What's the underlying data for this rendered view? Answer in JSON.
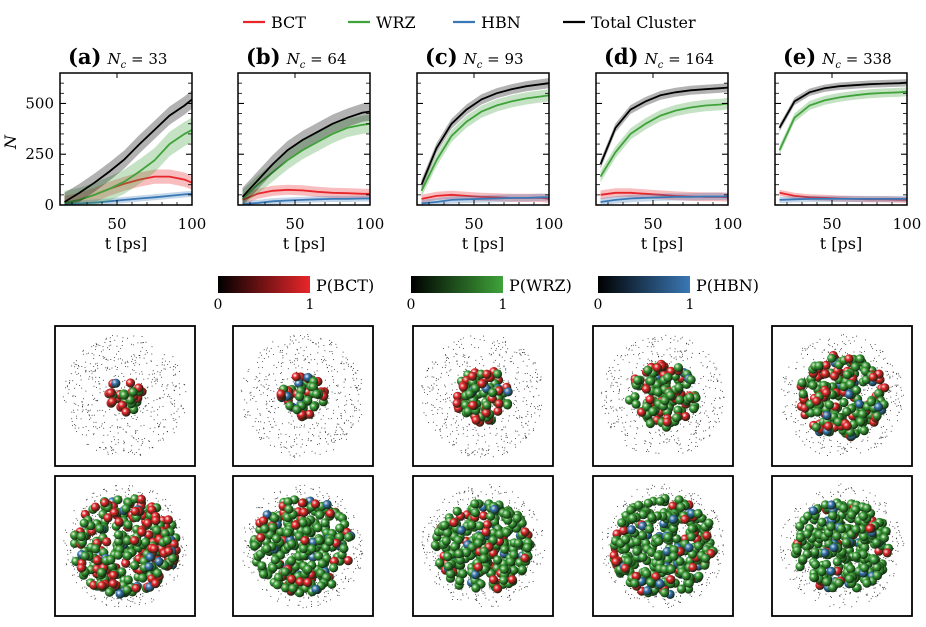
{
  "legend": [
    {
      "label": "BCT",
      "color": "#e8262a"
    },
    {
      "label": "WRZ",
      "color": "#3fa33a"
    },
    {
      "label": "HBN",
      "color": "#3a78b5"
    },
    {
      "label": "Total Cluster",
      "color": "#000000"
    }
  ],
  "colorbars": [
    {
      "label": "P(BCT)",
      "min": "0",
      "max": "1",
      "color": "#e8262a"
    },
    {
      "label": "P(WRZ)",
      "min": "0",
      "max": "1",
      "color": "#3fa33a"
    },
    {
      "label": "P(HBN)",
      "min": "0",
      "max": "1",
      "color": "#3a78b5"
    }
  ],
  "ylabel": "N",
  "chart_data": [
    {
      "type": "line",
      "panel": "(a)",
      "nc_label": "N_c = 33",
      "xlabel": "t [ps]",
      "ylabel": "N",
      "xlim": [
        12,
        100
      ],
      "ylim": [
        0,
        650
      ],
      "xticks": [
        50,
        100
      ],
      "yticks": [
        0,
        250,
        500
      ],
      "x": [
        15,
        25,
        35,
        45,
        55,
        65,
        75,
        85,
        95,
        100
      ],
      "series": [
        {
          "name": "Total Cluster",
          "values": [
            15,
            60,
            110,
            165,
            225,
            300,
            370,
            440,
            490,
            520
          ],
          "band": 45
        },
        {
          "name": "WRZ",
          "values": [
            10,
            25,
            50,
            80,
            115,
            165,
            220,
            300,
            350,
            370
          ],
          "band": 60
        },
        {
          "name": "BCT",
          "values": [
            10,
            25,
            50,
            80,
            105,
            125,
            140,
            140,
            125,
            110
          ],
          "band": 35
        },
        {
          "name": "HBN",
          "values": [
            5,
            8,
            12,
            18,
            25,
            32,
            38,
            45,
            52,
            55
          ],
          "band": 15
        }
      ]
    },
    {
      "type": "line",
      "panel": "(b)",
      "nc_label": "N_c = 64",
      "xlabel": "t [ps]",
      "ylabel": "N",
      "xlim": [
        12,
        100
      ],
      "ylim": [
        0,
        650
      ],
      "xticks": [
        50,
        100
      ],
      "yticks": [
        0,
        250,
        500
      ],
      "x": [
        15,
        25,
        35,
        45,
        55,
        65,
        75,
        85,
        95,
        100
      ],
      "series": [
        {
          "name": "Total Cluster",
          "values": [
            40,
            120,
            200,
            270,
            320,
            360,
            400,
            430,
            455,
            460
          ],
          "band": 45
        },
        {
          "name": "WRZ",
          "values": [
            30,
            100,
            160,
            220,
            270,
            310,
            350,
            380,
            395,
            400
          ],
          "band": 45
        },
        {
          "name": "BCT",
          "values": [
            25,
            55,
            70,
            75,
            72,
            65,
            60,
            58,
            55,
            55
          ],
          "band": 25
        },
        {
          "name": "HBN",
          "values": [
            5,
            10,
            18,
            22,
            25,
            28,
            30,
            30,
            32,
            32
          ],
          "band": 15
        }
      ]
    },
    {
      "type": "line",
      "panel": "(c)",
      "nc_label": "N_c = 93",
      "xlabel": "t [ps]",
      "ylabel": "N",
      "xlim": [
        12,
        100
      ],
      "ylim": [
        0,
        650
      ],
      "xticks": [
        50,
        100
      ],
      "yticks": [
        0,
        250,
        500
      ],
      "x": [
        15,
        25,
        35,
        45,
        55,
        65,
        75,
        85,
        95,
        100
      ],
      "series": [
        {
          "name": "Total Cluster",
          "values": [
            100,
            280,
            400,
            470,
            520,
            550,
            570,
            585,
            595,
            600
          ],
          "band": 25
        },
        {
          "name": "WRZ",
          "values": [
            70,
            220,
            340,
            410,
            460,
            490,
            510,
            525,
            535,
            540
          ],
          "band": 30
        },
        {
          "name": "BCT",
          "values": [
            30,
            45,
            50,
            45,
            40,
            38,
            35,
            35,
            35,
            30
          ],
          "band": 20
        },
        {
          "name": "HBN",
          "values": [
            8,
            15,
            25,
            28,
            30,
            32,
            35,
            35,
            38,
            38
          ],
          "band": 18
        }
      ]
    },
    {
      "type": "line",
      "panel": "(d)",
      "nc_label": "N_c = 164",
      "xlabel": "t [ps]",
      "ylabel": "N",
      "xlim": [
        12,
        100
      ],
      "ylim": [
        0,
        650
      ],
      "xticks": [
        50,
        100
      ],
      "yticks": [
        0,
        250,
        500
      ],
      "x": [
        15,
        25,
        35,
        45,
        55,
        65,
        75,
        85,
        95,
        100
      ],
      "series": [
        {
          "name": "Total Cluster",
          "values": [
            200,
            380,
            470,
            510,
            540,
            555,
            565,
            570,
            575,
            578
          ],
          "band": 22
        },
        {
          "name": "WRZ",
          "values": [
            140,
            260,
            350,
            400,
            440,
            465,
            480,
            490,
            495,
            500
          ],
          "band": 28
        },
        {
          "name": "BCT",
          "values": [
            50,
            60,
            60,
            55,
            50,
            45,
            42,
            40,
            40,
            38
          ],
          "band": 22
        },
        {
          "name": "HBN",
          "values": [
            15,
            25,
            32,
            35,
            38,
            40,
            40,
            42,
            42,
            42
          ],
          "band": 18
        }
      ]
    },
    {
      "type": "line",
      "panel": "(e)",
      "nc_label": "N_c = 338",
      "xlabel": "t [ps]",
      "ylabel": "N",
      "xlim": [
        12,
        100
      ],
      "ylim": [
        0,
        650
      ],
      "xticks": [
        50,
        100
      ],
      "yticks": [
        0,
        250,
        500
      ],
      "x": [
        15,
        25,
        35,
        45,
        55,
        65,
        75,
        85,
        95,
        100
      ],
      "series": [
        {
          "name": "Total Cluster",
          "values": [
            380,
            510,
            555,
            575,
            585,
            590,
            595,
            598,
            600,
            602
          ],
          "band": 18
        },
        {
          "name": "WRZ",
          "values": [
            270,
            430,
            490,
            515,
            530,
            540,
            548,
            552,
            555,
            558
          ],
          "band": 22
        },
        {
          "name": "BCT",
          "values": [
            60,
            45,
            38,
            35,
            32,
            30,
            28,
            28,
            26,
            25
          ],
          "band": 15
        },
        {
          "name": "HBN",
          "values": [
            25,
            28,
            30,
            30,
            30,
            30,
            30,
            30,
            30,
            30
          ],
          "band": 15
        }
      ]
    }
  ]
}
